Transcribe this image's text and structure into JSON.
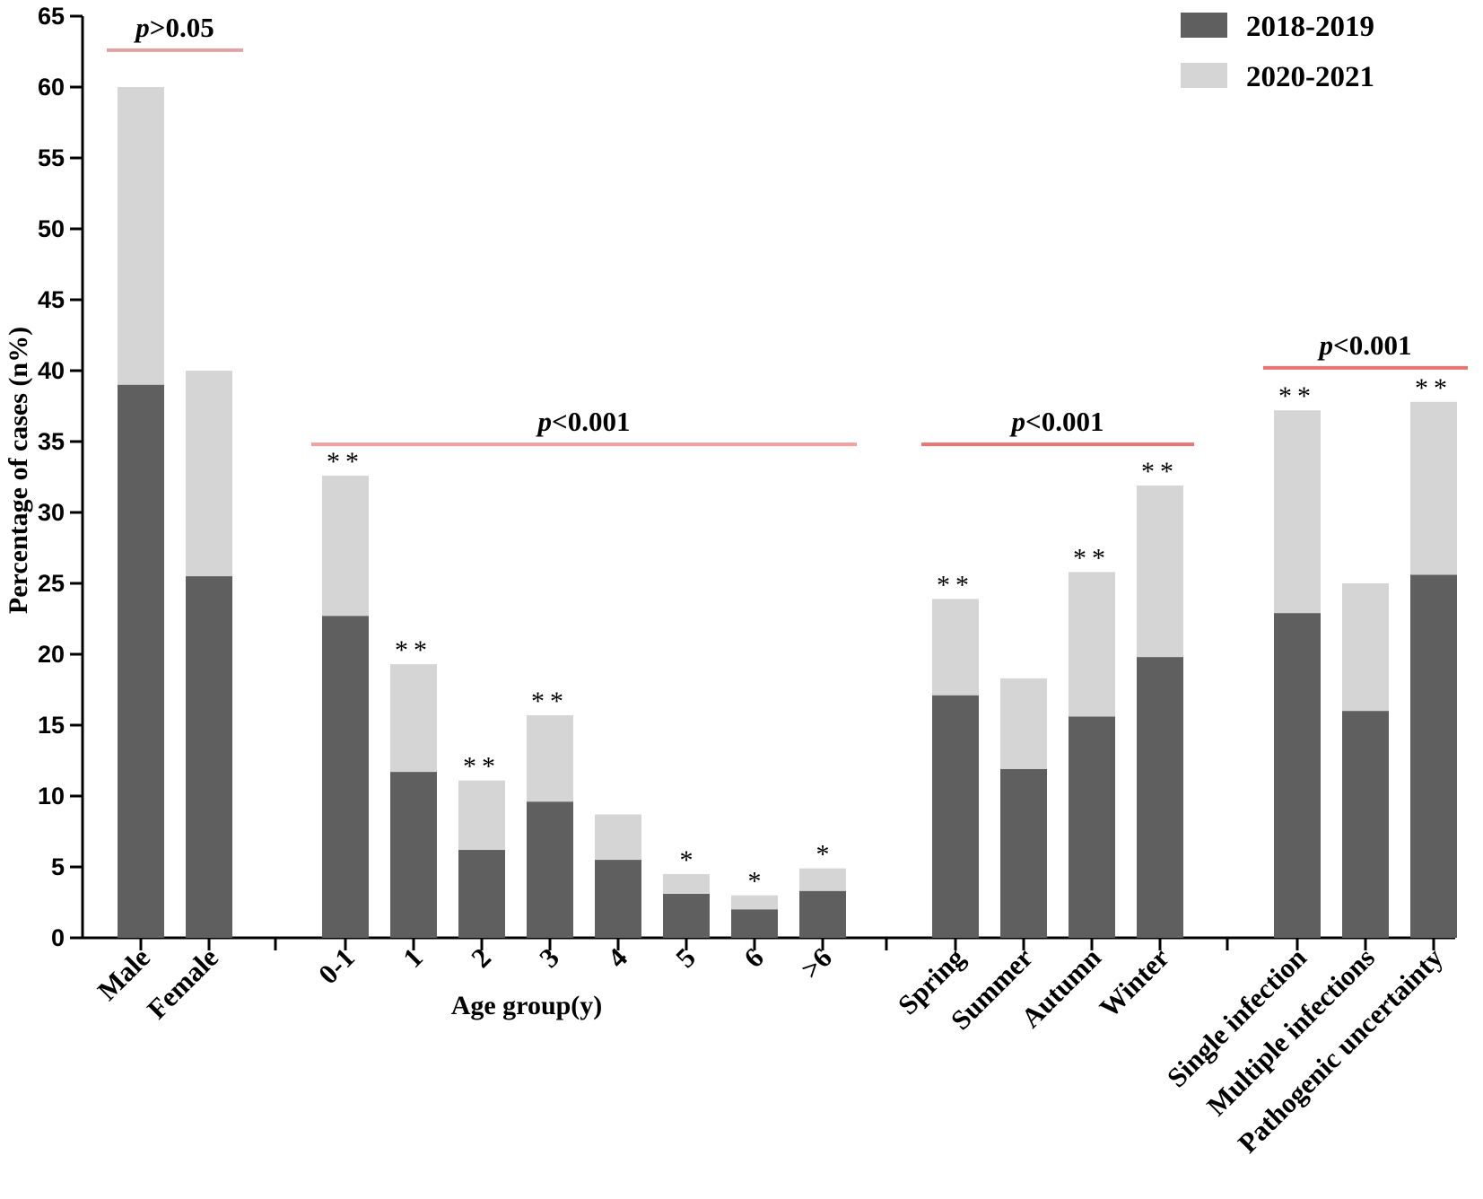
{
  "chart_data": {
    "type": "bar",
    "stacked": true,
    "ylabel": "Percentage of cases (n%)",
    "ylim": [
      0,
      65
    ],
    "yticks": [
      0,
      5,
      10,
      15,
      20,
      25,
      30,
      35,
      40,
      45,
      50,
      55,
      60,
      65
    ],
    "series": [
      {
        "name": "2018-2019",
        "color": "#5f5f5f"
      },
      {
        "name": "2020-2021",
        "color": "#d5d5d5"
      }
    ],
    "groups": [
      {
        "id": "sex",
        "xlabel": "",
        "categories": [
          "Male",
          "Female"
        ],
        "values_2018_2019": [
          39.0,
          25.5
        ],
        "totals": [
          60.0,
          40.0
        ],
        "significance": [
          "",
          ""
        ],
        "p_value": {
          "prefix": "p",
          "text": ">0.05"
        },
        "bracket_color": "#e0a3a3",
        "bracket_level": 62.6
      },
      {
        "id": "age",
        "xlabel": "Age group(y)",
        "categories": [
          "0-1",
          "1",
          "2",
          "3",
          "4",
          "5",
          "6",
          ">6"
        ],
        "values_2018_2019": [
          22.7,
          11.7,
          6.2,
          9.6,
          5.5,
          3.1,
          2.0,
          3.3
        ],
        "totals": [
          32.6,
          19.3,
          11.1,
          15.7,
          8.7,
          4.5,
          3.0,
          4.9
        ],
        "significance": [
          "**",
          "**",
          "**",
          "**",
          "",
          "*",
          "*",
          "*"
        ],
        "p_value": {
          "prefix": "p",
          "text": "<0.001"
        },
        "bracket_color": "#f0a0a0",
        "bracket_level": 34.8
      },
      {
        "id": "season",
        "xlabel": "",
        "categories": [
          "Spring",
          "Summer",
          "Autumn",
          "Winter"
        ],
        "values_2018_2019": [
          17.1,
          11.9,
          15.6,
          19.8
        ],
        "totals": [
          23.9,
          18.3,
          25.8,
          31.9
        ],
        "significance": [
          "**",
          "",
          "**",
          "**"
        ],
        "p_value": {
          "prefix": "p",
          "text": "<0.001"
        },
        "bracket_color": "#e87474",
        "bracket_level": 34.8
      },
      {
        "id": "infection",
        "xlabel": "",
        "categories": [
          "Single infection",
          "Multiple infections",
          "Pathogenic uncertainty"
        ],
        "values_2018_2019": [
          22.9,
          16.0,
          25.6
        ],
        "totals": [
          37.2,
          25.0,
          37.8
        ],
        "significance": [
          "**",
          "",
          "**"
        ],
        "p_value": {
          "prefix": "p",
          "text": "<0.001"
        },
        "bracket_color": "#e87474",
        "bracket_level": 40.2
      }
    ]
  }
}
